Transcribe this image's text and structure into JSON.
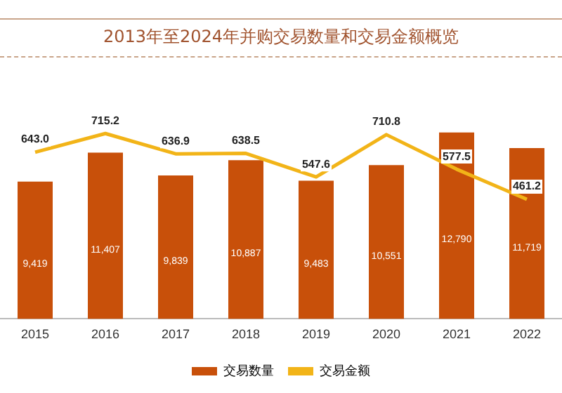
{
  "chart_data": {
    "type": "bar",
    "title": "2013年至2024年并购交易数量和交易金额概览",
    "categories": [
      "2015",
      "2016",
      "2017",
      "2018",
      "2019",
      "2020",
      "2021",
      "2022"
    ],
    "series": [
      {
        "name": "交易数量",
        "color": "#c8500a",
        "values": [
          9419,
          11407,
          9839,
          10887,
          9483,
          10551,
          12790,
          11719
        ],
        "value_labels": [
          "9,419",
          "11,407",
          "9,839",
          "10,887",
          "9,483",
          "10,551",
          "12,790",
          "11,719"
        ]
      },
      {
        "name": "交易金额",
        "type": "line",
        "axis": "y2",
        "color": "#f2b418",
        "values": [
          643.0,
          715.2,
          636.9,
          638.5,
          547.6,
          710.8,
          577.5,
          461.2
        ],
        "value_labels": [
          "643.0",
          "715.2",
          "636.9",
          "638.5",
          "547.6",
          "710.8",
          "577.5",
          "461.2"
        ]
      }
    ],
    "legend": "bottom",
    "grid": false,
    "tick_labels": "x",
    "marker": "none"
  }
}
